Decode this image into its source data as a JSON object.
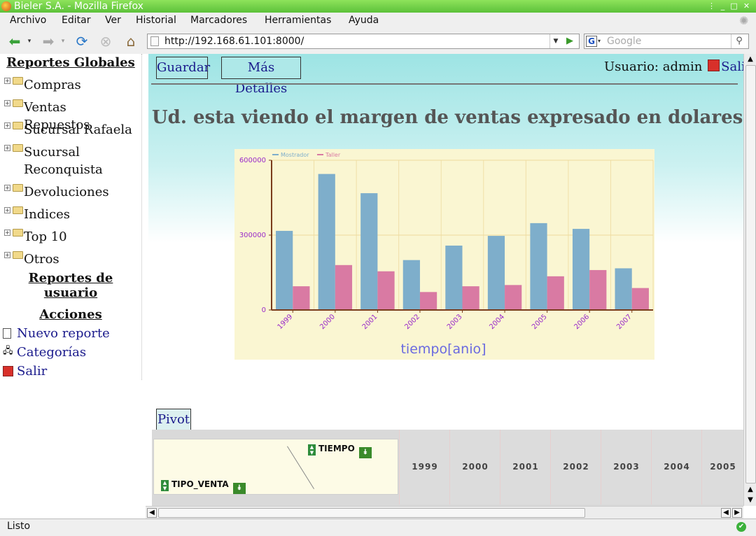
{
  "window": {
    "title": "Bieler S.A. - Mozilla Firefox"
  },
  "menubar": {
    "items": [
      "Archivo",
      "Editar",
      "Ver",
      "Historial",
      "Marcadores",
      "Herramientas",
      "Ayuda"
    ]
  },
  "navbar": {
    "url": "http://192.168.61.101:8000/",
    "search_placeholder": "Google"
  },
  "sidebar": {
    "global_title": "Reportes Globales",
    "tree": [
      "Compras",
      "Ventas Repuestos",
      "Sucursal Rafaela",
      "Sucursal Reconquista",
      "Devoluciones",
      "Indices",
      "Top 10",
      "Otros"
    ],
    "user_reports_title": "Reportes de usuario",
    "actions_title": "Acciones",
    "actions": [
      "Nuevo reporte",
      "Categorías",
      "Salir"
    ]
  },
  "header": {
    "save_label": "Guardar",
    "details_label": "Más Detalles",
    "user_label": "Usuario: admin",
    "logout_label": "Salir"
  },
  "main": {
    "heading": "Ud. esta viendo el margen de ventas expresado en dolares"
  },
  "colors": {
    "mostrador": "#7eaecb",
    "taller": "#d97aa3",
    "plot_bg": "#faf6d2",
    "axis": "#7a3c1c",
    "tick_label": "#9a2bc9",
    "xlabel": "#6a6ae0"
  },
  "chart_data": {
    "type": "bar",
    "categories": [
      "1999",
      "2000",
      "2001",
      "2002",
      "2003",
      "2004",
      "2005",
      "2006",
      "2007"
    ],
    "series": [
      {
        "name": "Mostrador",
        "values": [
          317000,
          545000,
          468000,
          200000,
          258000,
          297000,
          348000,
          325000,
          167000
        ]
      },
      {
        "name": "Taller",
        "values": [
          95000,
          180000,
          155000,
          72000,
          95000,
          100000,
          135000,
          160000,
          88000
        ]
      }
    ],
    "yticks": [
      0,
      300000,
      600000
    ],
    "ylim": [
      0,
      600000
    ],
    "xlabel": "tiempo[anio]",
    "legend": "top-left",
    "grid": true
  },
  "pivot": {
    "button_label": "Pivot",
    "col_var": "TIEMPO",
    "row_var": "TIPO_VENTA",
    "years": [
      "1999",
      "2000",
      "2001",
      "2002",
      "2003",
      "2004",
      "2005"
    ]
  },
  "statusbar": {
    "text": "Listo"
  }
}
